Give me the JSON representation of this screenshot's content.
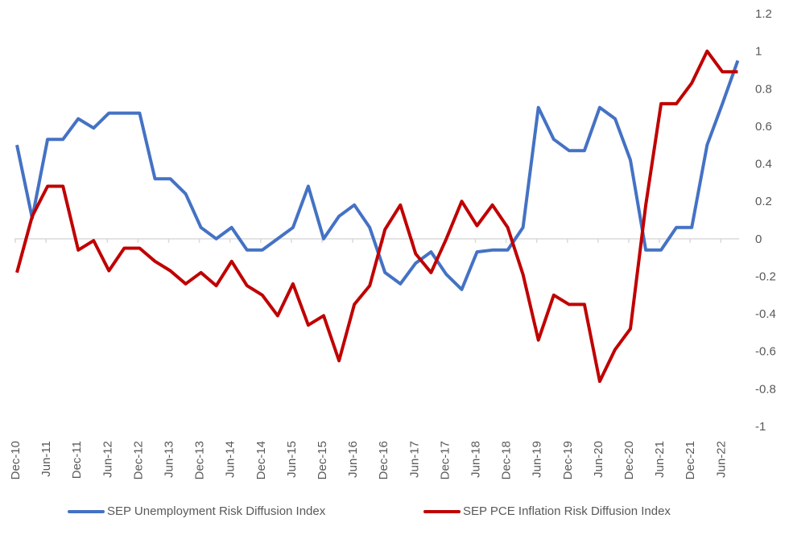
{
  "chart_data": {
    "type": "line",
    "title": "",
    "xlabel": "",
    "ylabel": "",
    "ylim": [
      -1,
      1.2
    ],
    "yticks": [
      "1.2",
      "1",
      "0.8",
      "0.6",
      "0.4",
      "0.2",
      "0",
      "-0.2",
      "-0.4",
      "-0.6",
      "-0.8",
      "-1"
    ],
    "ytick_values": [
      1.2,
      1,
      0.8,
      0.6,
      0.4,
      0.2,
      0,
      -0.2,
      -0.4,
      -0.6,
      -0.8,
      -1
    ],
    "y_axis_side": "right",
    "grid": false,
    "zero_line": true,
    "xtick_labels": [
      "Dec-10",
      "Jun-11",
      "Dec-11",
      "Jun-12",
      "Dec-12",
      "Jun-13",
      "Dec-13",
      "Jun-14",
      "Dec-14",
      "Jun-15",
      "Dec-15",
      "Jun-16",
      "Dec-16",
      "Jun-17",
      "Dec-17",
      "Jun-18",
      "Dec-18",
      "Jun-19",
      "Dec-19",
      "Jun-20",
      "Dec-20",
      "Jun-21",
      "Dec-21",
      "Jun-22"
    ],
    "points_per_quarter": true,
    "legend_position": "bottom",
    "series": [
      {
        "name": "SEP Unemployment Risk Diffusion Index",
        "color": "#4472C4",
        "values": [
          0.5,
          0.11,
          0.53,
          0.53,
          0.64,
          0.59,
          0.67,
          0.67,
          0.67,
          0.32,
          0.32,
          0.24,
          0.06,
          0.0,
          0.06,
          -0.06,
          -0.06,
          0.0,
          0.06,
          0.28,
          0.0,
          0.12,
          0.18,
          0.06,
          -0.18,
          -0.24,
          -0.13,
          -0.07,
          -0.19,
          -0.27,
          -0.07,
          -0.06,
          -0.06,
          0.06,
          0.7,
          0.53,
          0.47,
          0.47,
          0.7,
          0.64,
          0.42,
          -0.06,
          -0.06,
          0.06,
          0.06,
          0.5,
          0.72,
          0.95
        ]
      },
      {
        "name": "SEP PCE Inflation Risk Diffusion Index",
        "color": "#C00000",
        "values": [
          -0.18,
          0.12,
          0.28,
          0.28,
          -0.06,
          -0.01,
          -0.17,
          -0.05,
          -0.05,
          -0.12,
          -0.17,
          -0.24,
          -0.18,
          -0.25,
          -0.12,
          -0.25,
          -0.3,
          -0.41,
          -0.24,
          -0.46,
          -0.41,
          -0.65,
          -0.35,
          -0.25,
          0.05,
          0.18,
          -0.08,
          -0.18,
          0.0,
          0.2,
          0.07,
          0.18,
          0.06,
          -0.19,
          -0.54,
          -0.3,
          -0.35,
          -0.35,
          -0.76,
          -0.59,
          -0.48,
          0.18,
          0.72,
          0.72,
          0.83,
          1.0,
          0.89,
          0.89
        ]
      }
    ]
  },
  "legend": {
    "items": [
      {
        "label": "SEP Unemployment Risk Diffusion Index",
        "color": "#4472C4"
      },
      {
        "label": "SEP PCE Inflation Risk Diffusion Index",
        "color": "#C00000"
      }
    ]
  }
}
